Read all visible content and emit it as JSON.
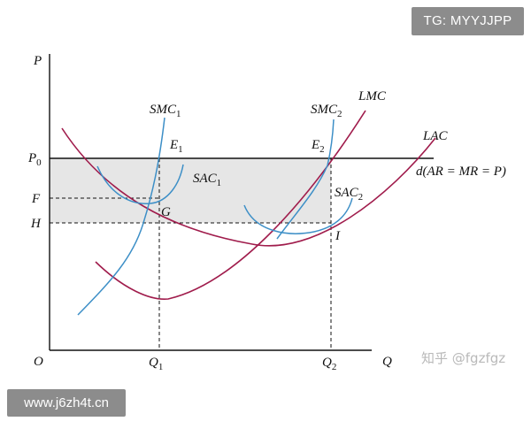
{
  "watermarks": {
    "top_right": "TG: MYYJJPP",
    "bottom_left": "www.j6zh4t.cn",
    "zhihu": "知乎 @fgzfgz"
  },
  "diagram": {
    "axes": {
      "y": "P",
      "x": "Q",
      "origin": "O"
    },
    "price_labels": {
      "p0": "P",
      "p0_sub": "0",
      "f": "F",
      "h": "H"
    },
    "quantity_labels": {
      "q1": "Q",
      "q1_sub": "1",
      "q2": "Q",
      "q2_sub": "2"
    },
    "curve_labels": {
      "smc1": "SMC",
      "smc1_sub": "1",
      "smc2": "SMC",
      "smc2_sub": "2",
      "sac1": "SAC",
      "sac1_sub": "1",
      "sac2": "SAC",
      "sac2_sub": "2",
      "lmc": "LMC",
      "lac": "LAC",
      "demand": "d(AR = MR = P)"
    },
    "points": {
      "e1": "E",
      "e1_sub": "1",
      "e2": "E",
      "e2_sub": "2",
      "g": "G",
      "i": "I"
    },
    "colors": {
      "long_run_curves": "#a01c4c",
      "short_run_curves": "#3d8fc7",
      "shaded_region": "#e6e6e6",
      "axes": "#111111"
    }
  }
}
